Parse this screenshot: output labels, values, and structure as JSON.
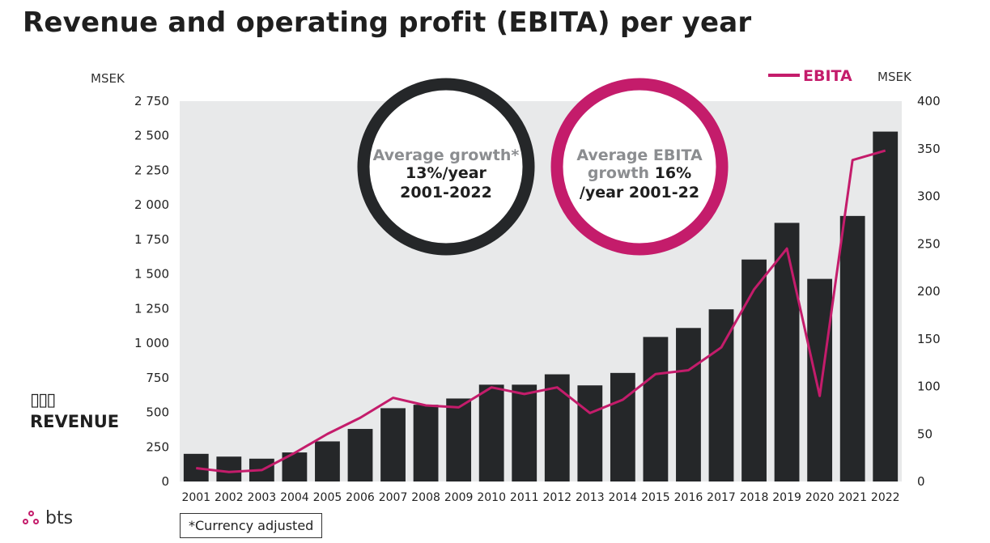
{
  "page": {
    "title": "Revenue and operating profit (EBITA) per year",
    "revenue_icon": "▯▯▯",
    "revenue_label": "REVENUE",
    "footnote": "*Currency adjusted",
    "logo_text": "bts",
    "logo_icon": "bts-dots-icon",
    "circles": [
      {
        "label": "Average growth*",
        "value": "13%/year",
        "period": "2001-2022",
        "ring_color": "#252729"
      },
      {
        "label": "Average EBITA",
        "label2": "growth",
        "value": "16%",
        "period": "/year 2001-22",
        "ring_color": "#c41c6b"
      }
    ]
  },
  "chart_data": {
    "type": "bar+line",
    "title": "Revenue and operating profit (EBITA) per year",
    "categories": [
      "2001",
      "2002",
      "2003",
      "2004",
      "2005",
      "2006",
      "2007",
      "2008",
      "2009",
      "2010",
      "2011",
      "2012",
      "2013",
      "2014",
      "2015",
      "2016",
      "2017",
      "2018",
      "2019",
      "2020",
      "2021",
      "2022"
    ],
    "series": [
      {
        "name": "REVENUE",
        "kind": "bar",
        "axis": "left",
        "color": "#252729",
        "values": [
          200,
          180,
          165,
          210,
          290,
          380,
          530,
          555,
          600,
          700,
          700,
          775,
          695,
          785,
          1045,
          1110,
          1245,
          1605,
          1870,
          1465,
          1920,
          2530
        ]
      },
      {
        "name": "EBITA",
        "kind": "line",
        "axis": "right",
        "color": "#c41c6b",
        "values": [
          14,
          10,
          12,
          30,
          50,
          67,
          88,
          80,
          78,
          99,
          92,
          99,
          72,
          86,
          113,
          117,
          141,
          202,
          245,
          90,
          338,
          348
        ]
      }
    ],
    "y_left": {
      "unit": "MSEK",
      "min": 0,
      "max": 2750,
      "ticks": [
        0,
        250,
        500,
        750,
        1000,
        1250,
        1500,
        1750,
        2000,
        2250,
        2500,
        2750
      ],
      "tick_labels": [
        "0",
        "250",
        "500",
        "750",
        "1 000",
        "1 250",
        "1 500",
        "1 750",
        "2 000",
        "2 250",
        "2 500",
        "2 750"
      ]
    },
    "y_right": {
      "unit": "MSEK",
      "min": 0,
      "max": 400,
      "ticks": [
        0,
        50,
        100,
        150,
        200,
        250,
        300,
        350,
        400
      ],
      "tick_labels": [
        "0",
        "50",
        "100",
        "150",
        "200",
        "250",
        "300",
        "350",
        "400"
      ]
    },
    "legend": {
      "label": "EBITA",
      "placement": "top-right"
    },
    "plot_background": "#e8e9ea",
    "grid": false
  }
}
